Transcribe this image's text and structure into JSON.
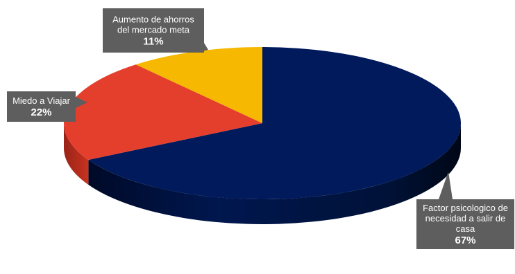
{
  "chart_data": {
    "type": "pie",
    "style": "3d",
    "labels": [
      "Factor psicologico de necesidad a salir de casa",
      "Miedo a Viajar",
      "Aumento de ahorros del mercado meta"
    ],
    "values": [
      67,
      22,
      11
    ],
    "value_labels": [
      "67%",
      "22%",
      "11%"
    ],
    "colors": [
      "#001A5C",
      "#E43F2D",
      "#F6B800"
    ],
    "label_style": "callout",
    "callouts": [
      {
        "lines": [
          "Factor psicologico de",
          "necesidad a salir de",
          "casa"
        ],
        "pct": "67%"
      },
      {
        "lines": [
          "Miedo a Viajar"
        ],
        "pct": "22%"
      },
      {
        "lines": [
          "Aumento de ahorros",
          "del mercado meta"
        ],
        "pct": "11%"
      }
    ],
    "callout_color": "#5E5E5E"
  }
}
